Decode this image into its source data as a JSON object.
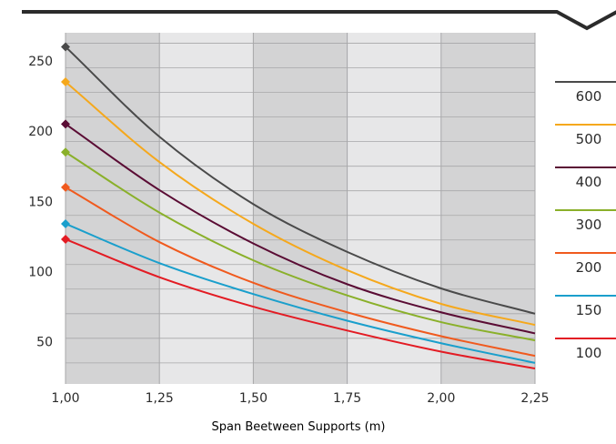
{
  "chart_data": {
    "type": "line",
    "xlabel": "Span Beetween Supports (m)",
    "ylabel": "",
    "xlim": [
      1.0,
      2.25
    ],
    "ylim": [
      20,
      270
    ],
    "x_ticks": [
      1.0,
      1.25,
      1.5,
      1.75,
      2.0,
      2.25
    ],
    "x_tick_labels": [
      "1,00",
      "1,25",
      "1,50",
      "1,75",
      "2,00",
      "2,25"
    ],
    "y_ticks": [
      50,
      100,
      150,
      200,
      250
    ],
    "y_tick_labels": [
      "50",
      "100",
      "150",
      "200",
      "250"
    ],
    "grid": true,
    "legend_position": "right",
    "x": [
      1.0,
      1.25,
      1.5,
      1.75,
      2.0,
      2.25
    ],
    "series": [
      {
        "name": "600",
        "color": "#4a4a4a",
        "values": [
          260,
          196,
          148,
          114,
          88,
          70
        ]
      },
      {
        "name": "500",
        "color": "#f5a81c",
        "values": [
          235,
          178,
          134,
          101,
          77,
          62
        ]
      },
      {
        "name": "400",
        "color": "#5a0c34",
        "values": [
          205,
          158,
          120,
          91,
          71,
          56
        ]
      },
      {
        "name": "300",
        "color": "#8ab02a",
        "values": [
          185,
          142,
          108,
          83,
          64,
          51
        ]
      },
      {
        "name": "200",
        "color": "#f05a1e",
        "values": [
          160,
          121,
          92,
          71,
          54,
          40
        ]
      },
      {
        "name": "150",
        "color": "#1a9fcc",
        "values": [
          134,
          106,
          84,
          65,
          49,
          35
        ]
      },
      {
        "name": "100",
        "color": "#e31b23",
        "values": [
          123,
          96,
          75,
          58,
          43,
          31
        ]
      }
    ]
  },
  "colors": {
    "header_line": "#2b2b2b",
    "band_dark": "#d3d3d4",
    "band_light": "#e7e7e8",
    "grid_line": "#a7a7a9",
    "axis_text": "#2b2b2b"
  }
}
